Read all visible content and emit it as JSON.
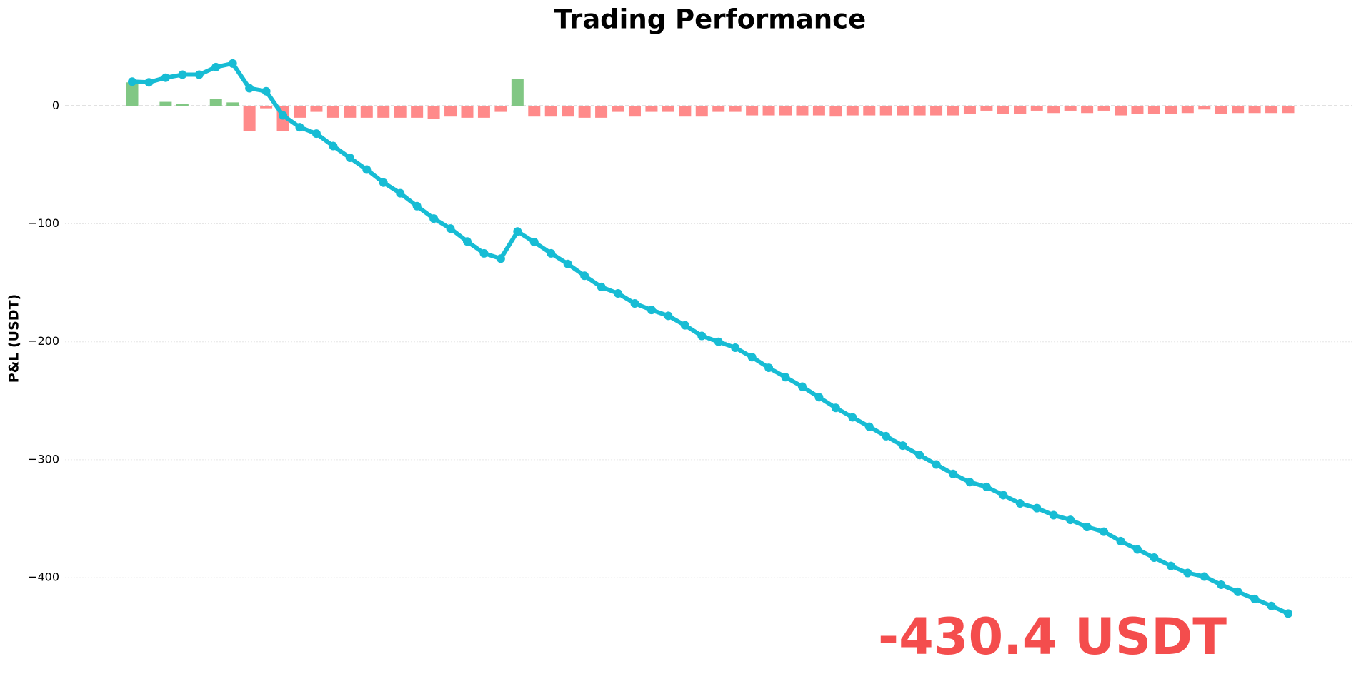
{
  "chart_data": {
    "type": "combo",
    "title": "Trading Performance",
    "y_label": "P&L (USDT)",
    "annotation": "-430.4 USDT",
    "annotation_color": "#f44d4d",
    "ylim": [
      -475,
      45
    ],
    "yticks": [
      0,
      {
        "value": -100,
        "label": "−100"
      },
      {
        "value": -200,
        "label": "−200"
      },
      {
        "value": -300,
        "label": "−300"
      },
      {
        "value": -400,
        "label": "−400"
      }
    ],
    "grid": true,
    "zero_line": true,
    "series": [
      {
        "type": "bar",
        "positive_color": "#81c784",
        "negative_color": "#ff8a8a",
        "values": [
          20,
          0,
          3.5,
          2,
          0,
          6,
          3,
          -21,
          -2,
          -21,
          -10,
          -5,
          -10,
          -10,
          -10,
          -10,
          -10,
          -10,
          -11,
          -9,
          -10,
          -10,
          -5,
          23,
          -9,
          -9,
          -9,
          -10,
          -10,
          -5,
          -9,
          -5,
          -5,
          -9,
          -9,
          -5,
          -5,
          -8,
          -8,
          -8,
          -8,
          -8,
          -9,
          -8,
          -8,
          -8,
          -8,
          -8,
          -8,
          -8,
          -7,
          -4,
          -7,
          -7,
          -4,
          -6,
          -4,
          -6,
          -4,
          -8,
          -7,
          -7,
          -7,
          -6,
          -3,
          -7,
          -6,
          -6,
          -6,
          -6
        ]
      },
      {
        "type": "line",
        "color": "#17bcd4",
        "values": [
          20.6,
          20,
          24,
          26.5,
          26.5,
          33,
          36,
          15,
          12.5,
          -8,
          -18,
          -23.5,
          -34,
          -44,
          -54,
          -65,
          -74,
          -85,
          -95.5,
          -104,
          -115,
          -125,
          -129.5,
          -106.5,
          -115.5,
          -125,
          -134,
          -144,
          -153.5,
          -159,
          -167.5,
          -173,
          -178,
          -186,
          -195,
          -200,
          -205,
          -213,
          -222,
          -230,
          -238,
          -247,
          -256,
          -264,
          -272,
          -280,
          -288,
          -296,
          -304,
          -312,
          -319,
          -323,
          -330,
          -337,
          -341,
          -347,
          -351,
          -357,
          -361,
          -369,
          -376,
          -383,
          -390,
          -396,
          -399,
          -406,
          -412,
          -418,
          -424,
          -430.4
        ]
      }
    ]
  }
}
